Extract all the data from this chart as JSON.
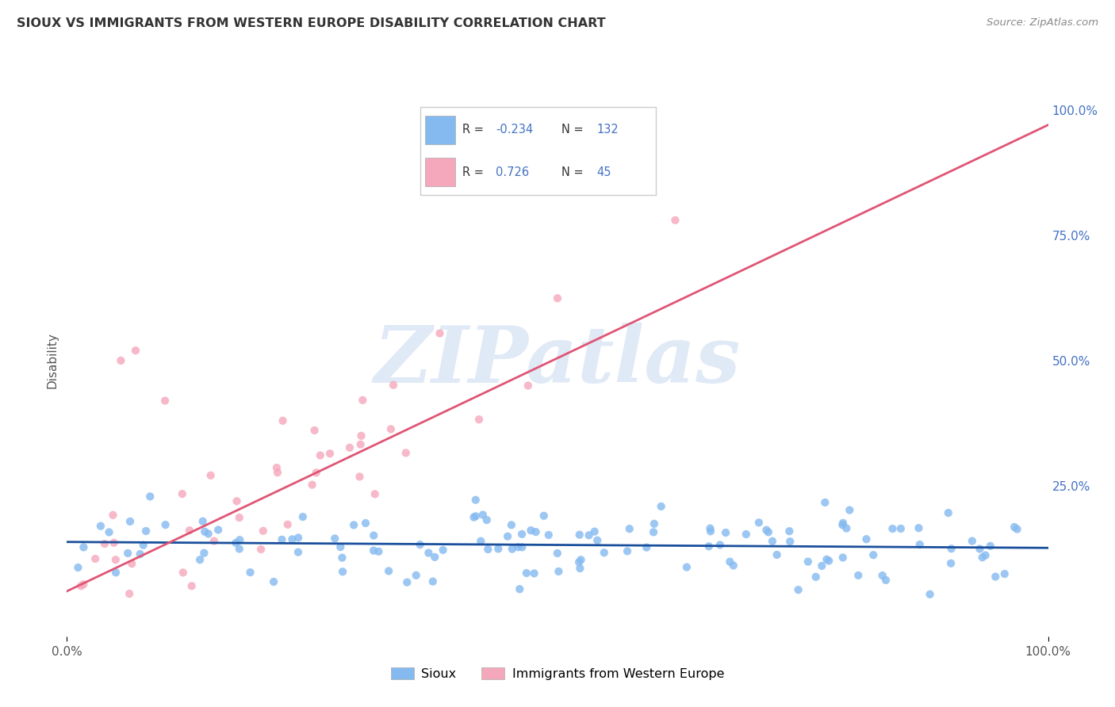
{
  "title": "SIOUX VS IMMIGRANTS FROM WESTERN EUROPE DISABILITY CORRELATION CHART",
  "source": "Source: ZipAtlas.com",
  "ylabel": "Disability",
  "watermark": "ZIPatlas",
  "blue_label": "Sioux",
  "pink_label": "Immigrants from Western Europe",
  "blue_R": -0.234,
  "blue_N": 132,
  "pink_R": 0.726,
  "pink_N": 45,
  "blue_color": "#85BAF0",
  "pink_color": "#F5A8BC",
  "blue_line_color": "#1A4F9C",
  "pink_line_color": "#E05575",
  "bg_color": "#FFFFFF",
  "grid_color": "#DDDDDD",
  "legend_text_color": "#4472C4",
  "right_tick_color": "#4472C4",
  "title_color": "#333333",
  "source_color": "#888888"
}
